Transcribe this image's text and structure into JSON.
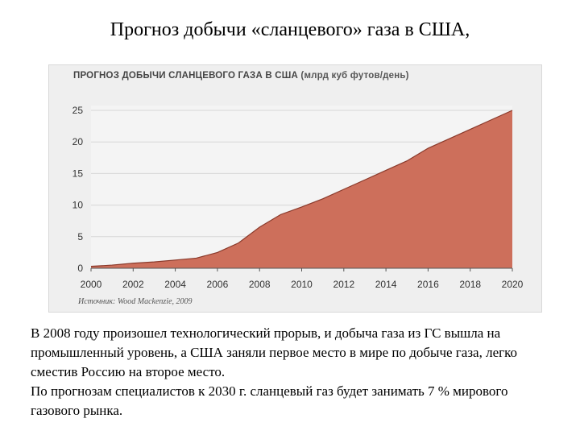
{
  "slide_title": "Прогноз добычи «сланцевого» газа в США,",
  "chart_data": {
    "type": "area",
    "title": "ПРОГНОЗ ДОБЫЧИ СЛАНЦЕВОГО ГАЗА В США",
    "unit": "(млрд куб футов/день)",
    "x": [
      2000,
      2001,
      2002,
      2003,
      2004,
      2005,
      2006,
      2007,
      2008,
      2009,
      2010,
      2011,
      2012,
      2013,
      2014,
      2015,
      2016,
      2017,
      2018,
      2019,
      2020
    ],
    "y": [
      0.3,
      0.5,
      0.8,
      1.0,
      1.3,
      1.6,
      2.5,
      4.0,
      6.5,
      8.5,
      9.7,
      11.0,
      12.5,
      14.0,
      15.5,
      17.0,
      19.0,
      20.5,
      22.0,
      23.5,
      25.0
    ],
    "xlim": [
      2000,
      2020
    ],
    "ylim": [
      0,
      25
    ],
    "x_ticks": [
      "2000",
      "2002",
      "2004",
      "2006",
      "2008",
      "2010",
      "2012",
      "2014",
      "2016",
      "2018",
      "2020"
    ],
    "y_ticks": [
      "0",
      "5",
      "10",
      "15",
      "20",
      "25"
    ],
    "fill_color": "#cd6f5b",
    "line_color": "#8a3a2b",
    "grid": true,
    "source": "Источник: Wood Mackenzie, 2009"
  },
  "body": {
    "para1": "В 2008 году произошел технологический прорыв, и добыча газа из ГС вышла на промышленный уровень, а США заняли первое место в мире по добыче газа, легко сместив Россию на второе место.",
    "para2": "По прогнозам специалистов к 2030 г. сланцевый газ будет занимать 7 % мирового газового рынка."
  }
}
